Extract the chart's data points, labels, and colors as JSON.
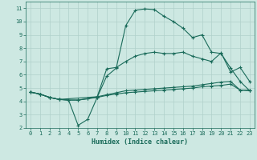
{
  "bg_color": "#cde8e2",
  "grid_color": "#b0d0ca",
  "line_color": "#1a6b5a",
  "line_width": 0.8,
  "marker": "+",
  "marker_size": 3,
  "xlabel": "Humidex (Indice chaleur)",
  "ylim": [
    2,
    11.5
  ],
  "xlim": [
    -0.5,
    23.5
  ],
  "yticks": [
    2,
    3,
    4,
    5,
    6,
    7,
    8,
    9,
    10,
    11
  ],
  "xticks": [
    0,
    1,
    2,
    3,
    4,
    5,
    6,
    7,
    8,
    9,
    10,
    11,
    12,
    13,
    14,
    15,
    16,
    17,
    18,
    19,
    20,
    21,
    22,
    23
  ],
  "line1_x": [
    0,
    1,
    2,
    3,
    4,
    5,
    6,
    7,
    8,
    9,
    10,
    11,
    12,
    13,
    14,
    15,
    16,
    17,
    18,
    19,
    20,
    21,
    22,
    23
  ],
  "line1_y": [
    4.7,
    4.55,
    4.3,
    4.15,
    4.1,
    2.2,
    2.65,
    4.3,
    5.9,
    6.5,
    9.7,
    10.85,
    10.95,
    10.9,
    10.4,
    10.0,
    9.5,
    8.8,
    9.0,
    7.7,
    7.6,
    6.5,
    5.5,
    4.8
  ],
  "line2_x": [
    0,
    1,
    2,
    3,
    7,
    8,
    9,
    10,
    11,
    12,
    13,
    14,
    15,
    16,
    17,
    18,
    19,
    20,
    21,
    22,
    23
  ],
  "line2_y": [
    4.7,
    4.55,
    4.3,
    4.15,
    4.35,
    6.45,
    6.55,
    7.0,
    7.4,
    7.6,
    7.7,
    7.6,
    7.6,
    7.7,
    7.4,
    7.2,
    7.0,
    7.65,
    6.2,
    6.55,
    5.5
  ],
  "line3_x": [
    0,
    1,
    2,
    3,
    4,
    5,
    6,
    7,
    8,
    9,
    10,
    11,
    12,
    13,
    14,
    15,
    16,
    17,
    18,
    19,
    20,
    21,
    22,
    23
  ],
  "line3_y": [
    4.7,
    4.55,
    4.3,
    4.15,
    4.1,
    4.1,
    4.2,
    4.3,
    4.45,
    4.55,
    4.65,
    4.7,
    4.75,
    4.8,
    4.85,
    4.9,
    4.95,
    5.0,
    5.1,
    5.15,
    5.2,
    5.3,
    4.85,
    4.8
  ],
  "line4_x": [
    0,
    1,
    2,
    3,
    4,
    5,
    6,
    7,
    8,
    9,
    10,
    11,
    12,
    13,
    14,
    15,
    16,
    17,
    18,
    19,
    20,
    21,
    22,
    23
  ],
  "line4_y": [
    4.7,
    4.55,
    4.3,
    4.15,
    4.1,
    4.1,
    4.2,
    4.35,
    4.5,
    4.65,
    4.8,
    4.85,
    4.9,
    4.95,
    5.0,
    5.05,
    5.1,
    5.15,
    5.25,
    5.35,
    5.45,
    5.5,
    4.85,
    4.85
  ]
}
